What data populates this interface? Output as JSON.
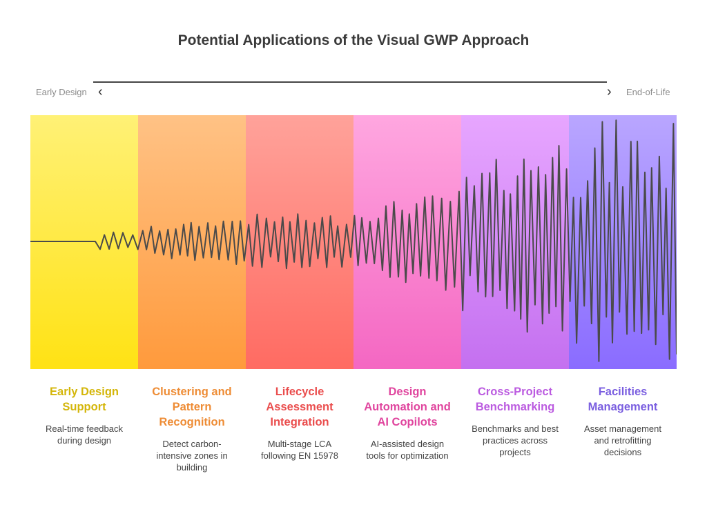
{
  "title": "Potential Applications of the Visual GWP Approach",
  "timeline": {
    "start_label": "Early Design",
    "end_label": "End-of-Life",
    "left_arrow_icon": "chevron-left-icon",
    "right_arrow_icon": "chevron-right-icon"
  },
  "stages": [
    {
      "title": "Early Design Support",
      "description": "Real-time feedback during design",
      "color": "#d4b60a",
      "band_top": "#fff176",
      "band_bottom": "#ffe214"
    },
    {
      "title": "Clustering and Pattern Recognition",
      "description": "Detect carbon-intensive zones in building",
      "color": "#ee8c35",
      "band_top": "#ffc285",
      "band_bottom": "#ff9a3c"
    },
    {
      "title": "Lifecycle Assessment Integration",
      "description": "Multi-stage LCA following EN 15978",
      "color": "#ea4d4d",
      "band_top": "#ffa29a",
      "band_bottom": "#ff6b62"
    },
    {
      "title": "Design Automation and AI Copilots",
      "description": "AI-assisted design tools for optimization",
      "color": "#e0459e",
      "band_top": "#ffa7e0",
      "band_bottom": "#f467c2"
    },
    {
      "title": "Cross-Project Benchmarking",
      "description": "Benchmarks and best practices across projects",
      "color": "#bb5be0",
      "band_top": "#e7a6ff",
      "band_bottom": "#c470f0"
    },
    {
      "title": "Facilities Management",
      "description": "Asset management and retrofitting decisions",
      "color": "#7a5ee0",
      "band_top": "#b9a6ff",
      "band_bottom": "#8a6cff"
    }
  ],
  "waveform": {
    "color": "#4a4a4a"
  }
}
